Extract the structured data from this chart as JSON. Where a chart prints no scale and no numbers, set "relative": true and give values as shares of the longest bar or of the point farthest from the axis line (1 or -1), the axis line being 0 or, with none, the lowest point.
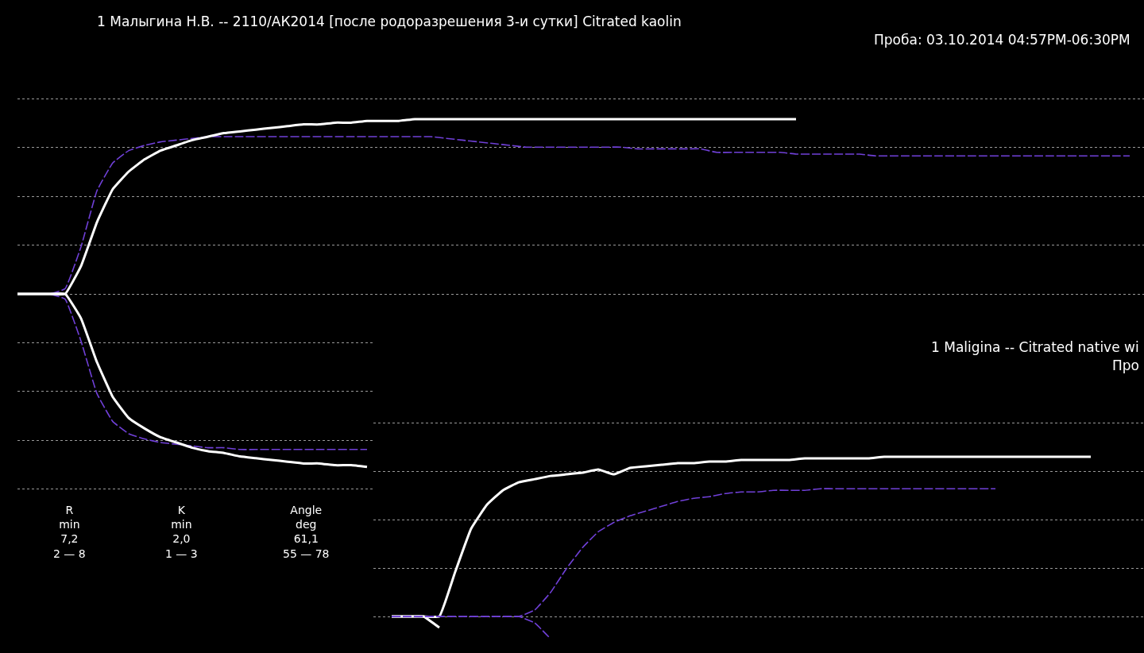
{
  "chart_data": [
    {
      "type": "line",
      "relative": true,
      "grid": "y",
      "title": "1 Малыгина Н.В. -- 2110/АК2014 [после родоразрешения 3-и сутки] Citrated kaolin",
      "subtitle": "Проба: 03.10.2014 04:57PM-06:30PM",
      "annotations": [
        "R\nmin\n7,2\n2 — 8",
        "K\nmin\n2,0\n1 — 3",
        "Angle\ndeg\n61,1\n55 — 78"
      ],
      "categories": [
        null,
        null,
        null,
        null,
        null,
        null,
        null,
        null,
        null,
        null,
        null,
        null,
        null,
        null,
        null,
        null,
        null,
        null,
        null,
        null,
        null,
        null,
        null,
        null,
        null,
        null,
        null,
        null,
        null,
        null,
        null,
        null,
        null,
        null,
        null,
        null,
        null,
        null,
        null,
        null,
        null,
        null,
        null,
        null,
        null,
        null,
        null,
        null,
        null,
        null,
        null,
        null,
        null,
        null,
        null,
        null,
        null,
        null,
        null,
        null,
        null,
        null,
        null,
        null,
        null,
        null,
        null,
        null,
        null,
        null,
        null
      ],
      "series": [
        {
          "color": "#7040d8",
          "line_style": "dashed",
          "values": [
            0,
            0,
            0,
            0.03,
            0.27,
            0.59,
            0.75,
            0.82,
            0.85,
            0.87,
            0.88,
            0.89,
            0.9,
            0.9,
            0.9,
            0.9,
            0.9,
            0.9,
            0.9,
            0.9,
            0.9,
            0.9,
            0.9,
            0.9,
            0.9,
            0.9,
            0.9,
            0.89,
            0.88,
            0.87,
            0.86,
            0.85,
            0.84,
            0.84,
            0.84,
            0.84,
            0.84,
            0.84,
            0.84,
            0.83,
            0.83,
            0.83,
            0.83,
            0.83,
            0.81,
            0.81,
            0.81,
            0.81,
            0.81,
            0.8,
            0.8,
            0.8,
            0.8,
            0.8,
            0.79,
            0.79,
            0.79,
            0.79,
            0.79,
            0.79,
            0.79,
            0.79,
            0.79,
            0.79,
            0.79,
            0.79,
            0.79,
            0.79,
            0.79,
            0.79,
            0.79
          ]
        },
        {
          "color": "#7040d8",
          "line_style": "dashed",
          "values": [
            0,
            0,
            0,
            -0.03,
            -0.27,
            -0.57,
            -0.73,
            -0.8,
            -0.83,
            -0.85,
            -0.86,
            -0.87,
            -0.88,
            -0.88,
            -0.89,
            -0.89,
            -0.89,
            -0.89,
            -0.89,
            -0.89,
            -0.89,
            -0.89,
            -0.89,
            null,
            null,
            null,
            null,
            null,
            null,
            null,
            null,
            null,
            null,
            null,
            null,
            null,
            null,
            null,
            null,
            null,
            null,
            null,
            null,
            null,
            null,
            null,
            null,
            null,
            null,
            null,
            null,
            null,
            null,
            null,
            null,
            null,
            null,
            null,
            null,
            null,
            null,
            null,
            null,
            null,
            null,
            null,
            null,
            null,
            null,
            null,
            null
          ]
        },
        {
          "color": "#ffffff",
          "line_style": "solid",
          "values": [
            0,
            0,
            0,
            0,
            0.16,
            0.41,
            0.6,
            0.7,
            0.77,
            0.82,
            0.85,
            0.88,
            0.9,
            0.92,
            0.93,
            0.94,
            0.95,
            0.96,
            0.97,
            0.97,
            0.98,
            0.98,
            0.99,
            0.99,
            0.99,
            1.0,
            1.0,
            1.0,
            1.0,
            1.0,
            1.0,
            1.0,
            1.0,
            1.0,
            1.0,
            1.0,
            1.0,
            1.0,
            1.0,
            1.0,
            1.0,
            1.0,
            1.0,
            1.0,
            1.0,
            1.0,
            1.0,
            1.0,
            1.0,
            1.0,
            null,
            null,
            null,
            null,
            null,
            null,
            null,
            null,
            null,
            null,
            null,
            null,
            null,
            null,
            null,
            null,
            null,
            null,
            null,
            null,
            null
          ]
        },
        {
          "color": "#ffffff",
          "line_style": "solid",
          "values": [
            0,
            0,
            0,
            0,
            -0.14,
            -0.39,
            -0.59,
            -0.71,
            -0.77,
            -0.82,
            -0.85,
            -0.88,
            -0.9,
            -0.91,
            -0.93,
            -0.94,
            -0.95,
            -0.96,
            -0.97,
            -0.97,
            -0.98,
            -0.98,
            -0.99,
            null,
            null,
            null,
            null,
            null,
            null,
            null,
            null,
            null,
            null,
            null,
            null,
            null,
            null,
            null,
            null,
            null,
            null,
            null,
            null,
            null,
            null,
            null,
            null,
            null,
            null,
            null,
            null,
            null,
            null,
            null,
            null,
            null,
            null,
            null,
            null,
            null,
            null,
            null,
            null,
            null,
            null,
            null,
            null,
            null,
            null,
            null,
            null
          ]
        }
      ]
    },
    {
      "type": "line",
      "relative": true,
      "grid": "y",
      "title": "1 Maligina -- Citrated native wi",
      "subtitle": "Про",
      "categories": [
        null,
        null,
        null,
        null,
        null,
        null,
        null,
        null,
        null,
        null,
        null,
        null,
        null,
        null,
        null,
        null,
        null,
        null,
        null,
        null,
        null,
        null,
        null,
        null,
        null,
        null,
        null,
        null,
        null,
        null,
        null,
        null,
        null,
        null,
        null,
        null,
        null,
        null,
        null,
        null,
        null,
        null,
        null,
        null,
        null,
        null,
        null,
        null
      ],
      "series": [
        {
          "color": "#ffffff",
          "line_style": "solid",
          "values": [
            0,
            0,
            0,
            0,
            0.28,
            0.55,
            0.7,
            0.79,
            0.84,
            0.86,
            0.88,
            0.89,
            0.9,
            0.92,
            0.89,
            0.93,
            0.94,
            0.95,
            0.96,
            0.96,
            0.97,
            0.97,
            0.98,
            0.98,
            0.98,
            0.98,
            0.99,
            0.99,
            0.99,
            0.99,
            0.99,
            1.0,
            1.0,
            1.0,
            1.0,
            1.0,
            1.0,
            1.0,
            1.0,
            1.0,
            1.0,
            1.0,
            1.0,
            1.0,
            1.0,
            null,
            null,
            null
          ]
        },
        {
          "color": "#ffffff",
          "line_style": "solid",
          "values": [
            0,
            0,
            0,
            -0.07,
            null,
            null,
            null,
            null,
            null,
            null,
            null,
            null,
            null,
            null,
            null,
            null,
            null,
            null,
            null,
            null,
            null,
            null,
            null,
            null,
            null,
            null,
            null,
            null,
            null,
            null,
            null,
            null,
            null,
            null,
            null,
            null,
            null,
            null,
            null,
            null,
            null,
            null,
            null,
            null,
            null,
            null,
            null,
            null
          ]
        },
        {
          "color": "#7040d8",
          "line_style": "dashed",
          "values": [
            0,
            0,
            0,
            0,
            0,
            0,
            0,
            0,
            0,
            0.04,
            0.15,
            0.3,
            0.43,
            0.53,
            0.59,
            0.63,
            0.66,
            0.69,
            0.72,
            0.74,
            0.75,
            0.77,
            0.78,
            0.78,
            0.79,
            0.79,
            0.79,
            0.8,
            0.8,
            0.8,
            0.8,
            0.8,
            0.8,
            0.8,
            0.8,
            0.8,
            0.8,
            0.8,
            0.8,
            null,
            null,
            null,
            null,
            null,
            null,
            null,
            null,
            null
          ]
        },
        {
          "color": "#7040d8",
          "line_style": "dashed",
          "values": [
            0,
            0,
            0,
            0,
            0,
            0,
            0,
            0,
            0,
            -0.04,
            -0.14,
            null,
            null,
            null,
            null,
            null,
            null,
            null,
            null,
            null,
            null,
            null,
            null,
            null,
            null,
            null,
            null,
            null,
            null,
            null,
            null,
            null,
            null,
            null,
            null,
            null,
            null,
            null,
            null,
            null,
            null,
            null,
            null,
            null,
            null,
            null,
            null,
            null
          ]
        }
      ]
    }
  ]
}
